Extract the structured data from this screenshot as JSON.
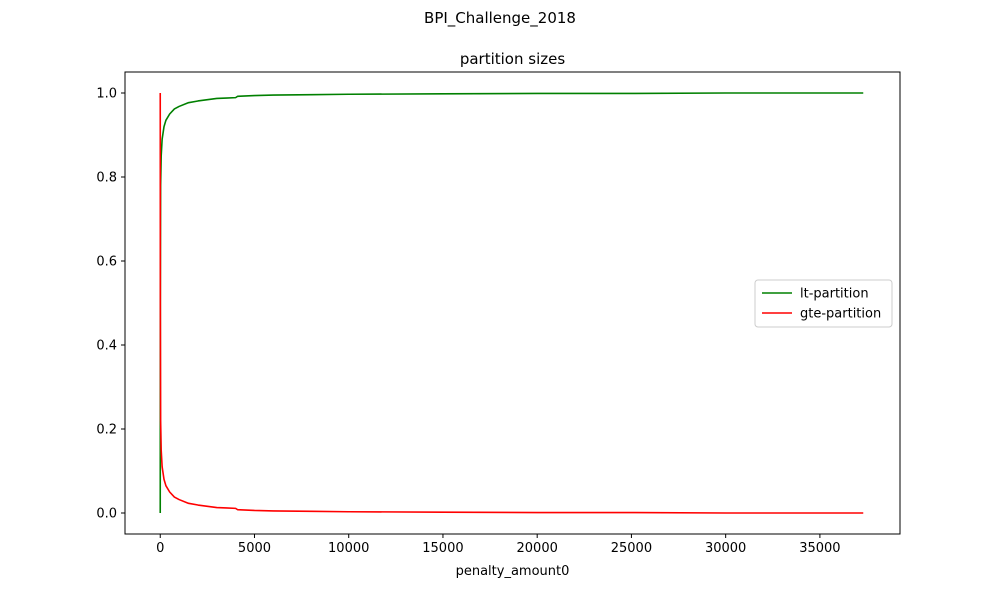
{
  "figure": {
    "suptitle": "BPI_Challenge_2018"
  },
  "chart_data": {
    "type": "line",
    "title": "partition sizes",
    "xlabel": "penalty_amount0",
    "ylabel": "",
    "xlim": [
      -1870,
      39250
    ],
    "ylim": [
      -0.05,
      1.05
    ],
    "xticks": [
      0,
      5000,
      10000,
      15000,
      20000,
      25000,
      30000,
      35000
    ],
    "xtick_labels": [
      "0",
      "5000",
      "10000",
      "15000",
      "20000",
      "25000",
      "30000",
      "35000"
    ],
    "yticks": [
      0.0,
      0.2,
      0.4,
      0.6,
      0.8,
      1.0
    ],
    "ytick_labels": [
      "0.0",
      "0.2",
      "0.4",
      "0.6",
      "0.8",
      "1.0"
    ],
    "grid": false,
    "legend_position": "center-right",
    "series": [
      {
        "name": "lt-partition",
        "color": "#008000",
        "x": [
          0,
          5,
          20,
          50,
          100,
          200,
          300,
          500,
          750,
          1000,
          1500,
          2000,
          2500,
          3000,
          3500,
          4000,
          4100,
          5000,
          6000,
          8000,
          10000,
          15000,
          20000,
          25000,
          30000,
          35000,
          37300
        ],
        "y": [
          0.0,
          0.5,
          0.78,
          0.85,
          0.89,
          0.92,
          0.935,
          0.95,
          0.962,
          0.968,
          0.977,
          0.981,
          0.984,
          0.987,
          0.988,
          0.989,
          0.992,
          0.994,
          0.995,
          0.996,
          0.997,
          0.998,
          0.999,
          0.999,
          1.0,
          1.0,
          1.0
        ]
      },
      {
        "name": "gte-partition",
        "color": "#ff0000",
        "x": [
          0,
          5,
          20,
          50,
          100,
          200,
          300,
          500,
          750,
          1000,
          1500,
          2000,
          2500,
          3000,
          3500,
          4000,
          4100,
          5000,
          6000,
          8000,
          10000,
          15000,
          20000,
          25000,
          30000,
          35000,
          37300
        ],
        "y": [
          1.0,
          0.5,
          0.22,
          0.15,
          0.11,
          0.08,
          0.065,
          0.05,
          0.038,
          0.032,
          0.023,
          0.019,
          0.016,
          0.013,
          0.012,
          0.011,
          0.008,
          0.006,
          0.005,
          0.004,
          0.003,
          0.002,
          0.001,
          0.001,
          0.0,
          0.0,
          0.0
        ]
      }
    ]
  }
}
